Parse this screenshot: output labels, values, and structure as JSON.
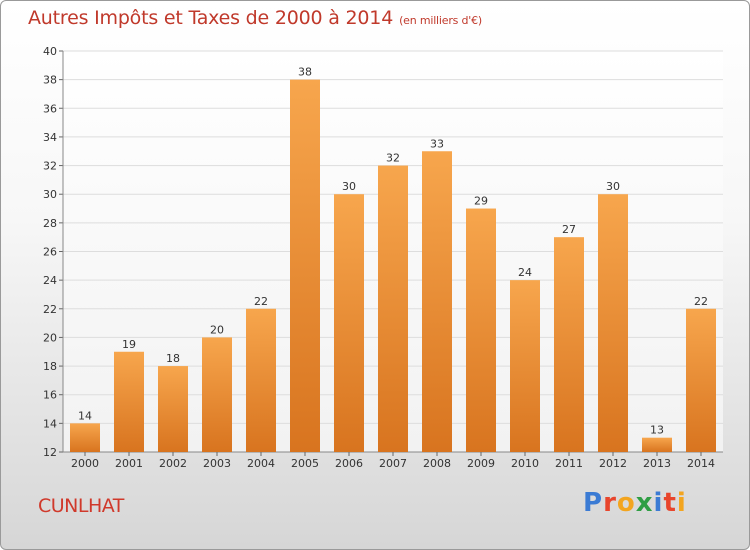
{
  "chart_data": {
    "type": "bar",
    "title": "Autres Impôts et Taxes de 2000 à 2014",
    "subtitle": "(en milliers d'€)",
    "categories": [
      "2000",
      "2001",
      "2002",
      "2003",
      "2004",
      "2005",
      "2006",
      "2007",
      "2008",
      "2009",
      "2010",
      "2011",
      "2012",
      "2013",
      "2014"
    ],
    "values": [
      14,
      19,
      18,
      20,
      22,
      38,
      30,
      32,
      33,
      29,
      24,
      27,
      30,
      13,
      22
    ],
    "ylim": [
      12,
      40
    ],
    "yticks": [
      12,
      14,
      16,
      18,
      20,
      22,
      24,
      26,
      28,
      30,
      32,
      34,
      36,
      38,
      40
    ],
    "grid": true,
    "bar_color": "#f0a050",
    "grid_color": "#dddddd"
  },
  "footer": {
    "city": "CUNLHAT",
    "logo": "Proxiti"
  }
}
